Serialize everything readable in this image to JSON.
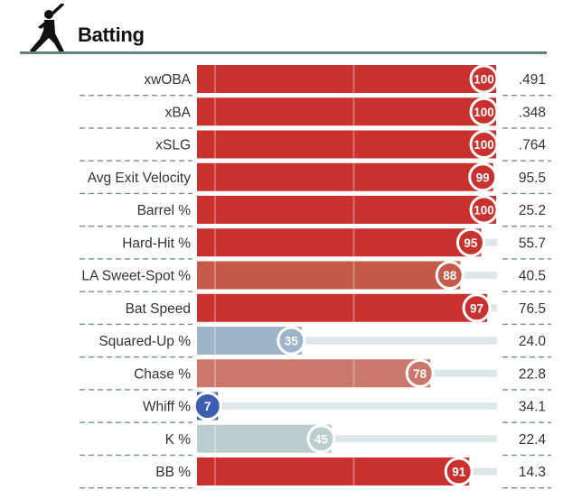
{
  "header": {
    "title": "Batting",
    "icon": "batter-silhouette-icon"
  },
  "colors": {
    "rule": "#5e8187",
    "dash": "#6f9197",
    "track": "#dde6e8"
  },
  "chart_data": {
    "type": "bar",
    "orientation": "horizontal",
    "title": "Batting",
    "categories": [
      "xwOBA",
      "xBA",
      "xSLG",
      "Avg Exit Velocity",
      "Barrel %",
      "Hard-Hit %",
      "LA Sweet-Spot %",
      "Bat Speed",
      "Squared-Up %",
      "Chase %",
      "Whiff %",
      "K %",
      "BB %"
    ],
    "series": [
      {
        "values": [
          100,
          100,
          100,
          99,
          100,
          95,
          88,
          97,
          35,
          78,
          7,
          45,
          91
        ]
      }
    ],
    "stat_values": [
      ".491",
      ".348",
      ".764",
      "95.5",
      "25.2",
      "55.7",
      "40.5",
      "76.5",
      "24.0",
      "22.8",
      "34.1",
      "22.4",
      "14.3"
    ],
    "bar_colors": [
      "#c9312f",
      "#c9312f",
      "#c9312f",
      "#c9312f",
      "#c9312f",
      "#c9312f",
      "#c65a4a",
      "#c9312f",
      "#9fb3c9",
      "#ca786b",
      "#3d5eb0",
      "#bccdd0",
      "#c9312f"
    ],
    "xlim": [
      0,
      100
    ],
    "gridlines": [
      50
    ],
    "legend": "none"
  }
}
